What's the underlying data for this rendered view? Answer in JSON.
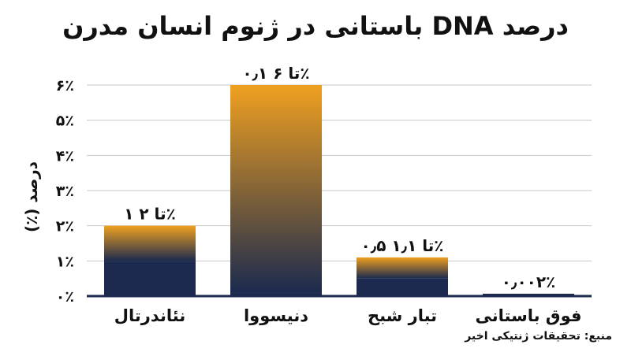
{
  "title": "درصد DNA باستانی در ژنوم انسان مدرن",
  "source": "منبع: تحقیقات ژنتیکی اخیر",
  "colors": {
    "navy": "#1b2a4e",
    "gold": "#f0a020",
    "grid": "#c8c8c8",
    "axis": "#1b2a4e"
  },
  "chart_data": {
    "type": "bar",
    "title": "درصد DNA باستانی در ژنوم انسان مدرن",
    "ylabel": "درصد (٪)",
    "xlabel": "",
    "ylim": [
      0,
      6
    ],
    "y_ticks": [
      0,
      1,
      2,
      3,
      4,
      5,
      6
    ],
    "y_tick_labels": [
      "۰٪",
      "۱٪",
      "۲٪",
      "۳٪",
      "۴٪",
      "۵٪",
      "۶٪"
    ],
    "grid": true,
    "categories": [
      "نئاندرتال",
      "دنیسووا",
      "تبار شبح",
      "فوق باستانی"
    ],
    "ranges": [
      {
        "low": 1,
        "high": 2,
        "label": "۱ تا ۲٪"
      },
      {
        "low": 0.1,
        "high": 6,
        "label": "۰٫۱ تا ۶٪"
      },
      {
        "low": 0.5,
        "high": 1.1,
        "label": "۰٫۵ تا ۱٫۱٪"
      },
      {
        "low": 0.002,
        "high": 0.002,
        "label": "۰٫۰۰۲٪"
      }
    ]
  }
}
